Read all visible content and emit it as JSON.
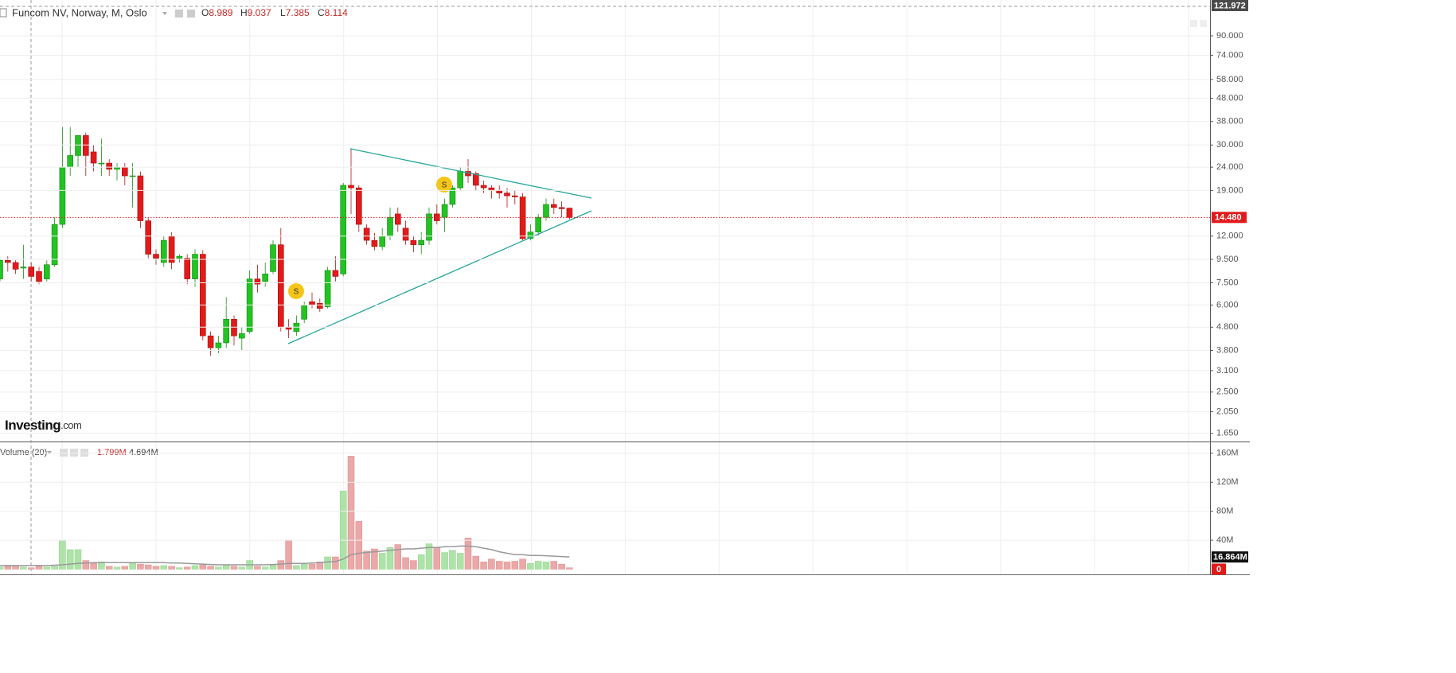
{
  "chart_data": {
    "type": "candlestick",
    "title": "Funcom NV, Norway, M, Oslo",
    "legend_values": [
      {
        "label": "O",
        "value": 8.989
      },
      {
        "label": "H",
        "value": 9.037
      },
      {
        "label": "L",
        "value": 7.385
      },
      {
        "label": "C",
        "value": 8.114
      }
    ],
    "log_scale": true,
    "grid": true,
    "up_color": "#22c322",
    "down_color": "#e31a1a",
    "ylim": [
      1.52,
      129
    ],
    "yticks": [
      {
        "value": 90,
        "label": "90.000"
      },
      {
        "value": 74,
        "label": "74.000"
      },
      {
        "value": 58,
        "label": "58.000"
      },
      {
        "value": 48,
        "label": "48.000"
      },
      {
        "value": 38,
        "label": "38.000"
      },
      {
        "value": 30,
        "label": "30.000"
      },
      {
        "value": 24,
        "label": "24.000"
      },
      {
        "value": 19,
        "label": "19.000"
      },
      {
        "value": 12,
        "label": "12.000"
      },
      {
        "value": 9.5,
        "label": "9.500"
      },
      {
        "value": 7.5,
        "label": "7.500"
      },
      {
        "value": 6,
        "label": "6.000"
      },
      {
        "value": 4.8,
        "label": "4.800"
      },
      {
        "value": 3.8,
        "label": "3.800"
      },
      {
        "value": 3.1,
        "label": "3.100"
      },
      {
        "value": 2.5,
        "label": "2.500"
      },
      {
        "value": 2.05,
        "label": "2.050"
      },
      {
        "value": 1.65,
        "label": "1.650"
      }
    ],
    "crosshair_price": {
      "value": 121.972,
      "label": "121.972"
    },
    "last_price": {
      "value": 14.48,
      "label": "14.480"
    },
    "candles": {
      "open": [
        7.8,
        9.4,
        9.2,
        8.7,
        8.8,
        8.4,
        7.8,
        9.0,
        13.5,
        24,
        27,
        33,
        28,
        25,
        25,
        23.5,
        24,
        22,
        22,
        14,
        10,
        9.2,
        12,
        9.6,
        9.6,
        7.8,
        10,
        4.4,
        3.9,
        4.1,
        5.2,
        4.3,
        4.6,
        7.8,
        7.6,
        8.4,
        11,
        4.8,
        4.6,
        5.2,
        6.2,
        6.1,
        5.9,
        8.5,
        8.2,
        20,
        19.5,
        13,
        11.5,
        10.8,
        12,
        15,
        13,
        11.5,
        11,
        11.5,
        15,
        14.5,
        16.5,
        19.5,
        23,
        22.5,
        20,
        19.5,
        19,
        18.5,
        18,
        17.8,
        11.7,
        12.5,
        14.5,
        16.5,
        16,
        15.9
      ],
      "high": [
        9.6,
        9.8,
        9.4,
        11,
        9.2,
        8.8,
        9.4,
        14.5,
        36,
        36,
        33,
        34,
        30,
        32,
        26,
        25,
        25,
        25,
        23,
        14.5,
        10.5,
        12,
        12.5,
        10,
        10,
        10.5,
        10.4,
        4.6,
        4.4,
        6.5,
        5.4,
        4.8,
        8.5,
        9,
        9.2,
        11.5,
        13,
        5.2,
        5.4,
        6.2,
        6.8,
        6.4,
        8.8,
        9.8,
        20.5,
        29,
        20,
        13.5,
        12.4,
        13,
        16,
        16,
        14,
        12,
        12.5,
        16,
        16.5,
        17.5,
        20,
        24,
        26,
        23,
        21,
        20,
        20,
        19.5,
        19,
        18.5,
        13.5,
        15,
        17.5,
        17.5,
        17,
        16
      ],
      "low": [
        7.6,
        8.4,
        8.2,
        7.8,
        7.6,
        7.4,
        7.6,
        8.8,
        13,
        22,
        24,
        22,
        23,
        22,
        22,
        21,
        20,
        16,
        13,
        9.6,
        9,
        8.8,
        8.6,
        9.2,
        7.4,
        7.2,
        4.2,
        3.6,
        3.7,
        3.9,
        4.0,
        3.8,
        4.5,
        6.8,
        7.2,
        8.2,
        4.6,
        4.3,
        4.4,
        5.0,
        5.8,
        5.6,
        5.8,
        7.6,
        8,
        15,
        12.5,
        11,
        10.4,
        10.4,
        11.5,
        12.5,
        11,
        10.2,
        10,
        11,
        13.5,
        12.5,
        16,
        19,
        20.5,
        19,
        18.5,
        17.5,
        17.5,
        16,
        16.5,
        11.5,
        11.5,
        12,
        14,
        15,
        14.5,
        14.2
      ],
      "close": [
        9.4,
        9.2,
        8.6,
        8.8,
        8.0,
        7.6,
        9.0,
        13.5,
        24,
        27,
        33,
        27,
        25,
        25,
        23.5,
        24,
        22,
        22,
        14,
        10,
        9.6,
        11.5,
        9.2,
        9.8,
        7.8,
        10,
        4.4,
        3.9,
        4.1,
        5.2,
        4.4,
        4.5,
        7.8,
        7.4,
        8.2,
        11,
        4.8,
        4.7,
        5.0,
        6.0,
        6.0,
        5.8,
        8.5,
        8.0,
        20,
        19.5,
        13.5,
        11.5,
        10.8,
        12,
        14.5,
        13.5,
        11.5,
        11,
        11.5,
        15,
        14,
        16.5,
        19.5,
        23,
        22,
        20,
        19.5,
        19,
        18.5,
        18,
        17.8,
        11.7,
        12.5,
        14.5,
        16.5,
        16,
        15.8,
        14.48
      ]
    },
    "volume": {
      "name": "Volume (20)",
      "legend_values": [
        {
          "value": 1.799,
          "label": "1.799M"
        },
        {
          "value": 4.694,
          "label": "4.694M"
        }
      ],
      "values": [
        3,
        4,
        5,
        3,
        2,
        4,
        3,
        4,
        40,
        27,
        27,
        12,
        8,
        10,
        4,
        3,
        4,
        8,
        7,
        6,
        4,
        5,
        4,
        2,
        3,
        5,
        6,
        4,
        3,
        6,
        4,
        3,
        12,
        4,
        3,
        6,
        12,
        40,
        5,
        7,
        7,
        10,
        17,
        17,
        108,
        156,
        66,
        25,
        28,
        22,
        30,
        34,
        16,
        12,
        20,
        35,
        30,
        23,
        26,
        22,
        43,
        18,
        10,
        14,
        11,
        10,
        11,
        14,
        8,
        11,
        10,
        11,
        7,
        2
      ],
      "ma": [
        5,
        5,
        5,
        5,
        5,
        5,
        5,
        5.5,
        6,
        7,
        8,
        8.5,
        9,
        9,
        9,
        9,
        9,
        9,
        9,
        9,
        9,
        9,
        8.5,
        8.5,
        8,
        7.5,
        7,
        6.5,
        6,
        6,
        6,
        6,
        6,
        6,
        6,
        6.5,
        7,
        8,
        8,
        8,
        8.5,
        9,
        10,
        10.5,
        14,
        20,
        22,
        23,
        24,
        25,
        26,
        27,
        28,
        28,
        29,
        30,
        30,
        31,
        31,
        32,
        32,
        31,
        29,
        27,
        24,
        22,
        20,
        20,
        19,
        19,
        18.5,
        18,
        17.5,
        16.864
      ],
      "ma_label": {
        "value": 16.864,
        "label": "16.864M"
      },
      "current_marker": 0,
      "ylim": [
        0,
        174
      ],
      "yticks": [
        {
          "value": 160,
          "label": "160M"
        },
        {
          "value": 120,
          "label": "120M"
        },
        {
          "value": 80,
          "label": "80M"
        },
        {
          "value": 40,
          "label": "40M"
        }
      ]
    },
    "brand": {
      "name": "Investing",
      "suffix": ".com"
    }
  }
}
